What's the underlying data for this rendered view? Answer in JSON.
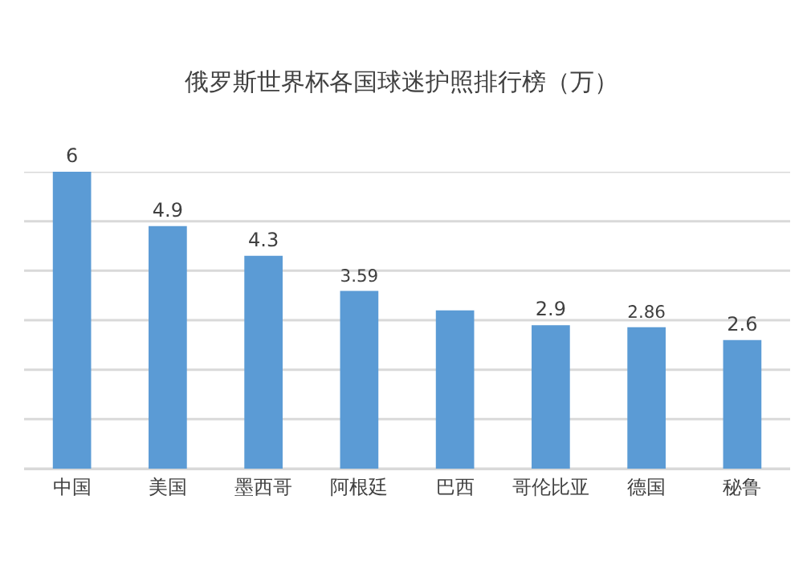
{
  "chart_data": {
    "type": "bar",
    "title": "俄罗斯世界杯各国球迷护照排行榜（万）",
    "categories": [
      "中国",
      "美国",
      "墨西哥",
      "阿根廷",
      "巴西",
      "哥伦比亚",
      "德国",
      "秘鲁"
    ],
    "values": [
      6,
      4.9,
      4.3,
      3.59,
      3.2,
      2.9,
      2.86,
      2.6
    ],
    "value_labels": [
      "6",
      "4.9",
      "4.3",
      "3.59",
      null,
      "2.9",
      "2.86",
      "2.6"
    ],
    "color": "#5b9bd5",
    "ylim": [
      0,
      6
    ],
    "yticks": [
      {
        "value": 0,
        "label": null
      },
      {
        "value": 1,
        "label": null
      },
      {
        "value": 2,
        "label": null
      },
      {
        "value": 3,
        "label": null
      },
      {
        "value": 4,
        "label": null
      },
      {
        "value": 5,
        "label": null
      },
      {
        "value": 6,
        "label": null
      }
    ],
    "tick_labels": "x",
    "grid": "y",
    "legend": false
  }
}
